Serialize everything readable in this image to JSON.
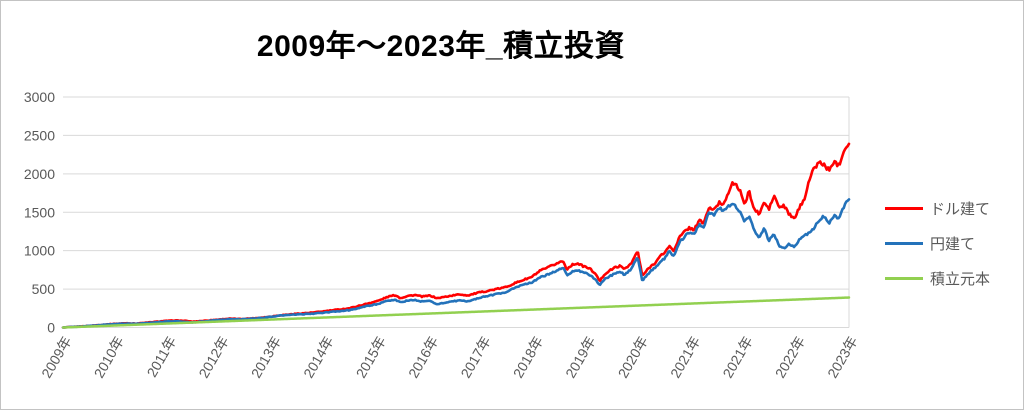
{
  "chart_data": {
    "type": "line",
    "title": "2009年～2023年_積立投資",
    "xlabel": "",
    "ylabel": "",
    "ylim": [
      0,
      3000
    ],
    "y_ticks": [
      0,
      500,
      1000,
      1500,
      2000,
      2500,
      3000
    ],
    "grid": true,
    "gridline_color": "#d9d9d9",
    "axis_text_color": "#595959",
    "legend_position": "right",
    "x_tick_labels": [
      "2009年",
      "2010年",
      "2011年",
      "2012年",
      "2013年",
      "2014年",
      "2015年",
      "2016年",
      "2017年",
      "2018年",
      "2019年",
      "2020年",
      "2021年",
      "2021年",
      "2022年",
      "2023年"
    ],
    "x_note": "t is the fraction of the horizontal axis from 2009 (0.0) to late 2023 (1.0); underlying data is daily",
    "series": [
      {
        "name": "ドル建て",
        "color": "#ff0000",
        "width": 2.6,
        "noisy": true,
        "points": [
          [
            0.0,
            0
          ],
          [
            0.023,
            14
          ],
          [
            0.042,
            28
          ],
          [
            0.061,
            45
          ],
          [
            0.08,
            56
          ],
          [
            0.093,
            51
          ],
          [
            0.112,
            68
          ],
          [
            0.128,
            84
          ],
          [
            0.143,
            92
          ],
          [
            0.156,
            86
          ],
          [
            0.165,
            75
          ],
          [
            0.175,
            84
          ],
          [
            0.194,
            100
          ],
          [
            0.211,
            115
          ],
          [
            0.226,
            110
          ],
          [
            0.245,
            122
          ],
          [
            0.261,
            138
          ],
          [
            0.277,
            160
          ],
          [
            0.296,
            178
          ],
          [
            0.315,
            192
          ],
          [
            0.327,
            205
          ],
          [
            0.346,
            228
          ],
          [
            0.365,
            252
          ],
          [
            0.384,
            302
          ],
          [
            0.401,
            348
          ],
          [
            0.414,
            402
          ],
          [
            0.423,
            422
          ],
          [
            0.429,
            382
          ],
          [
            0.439,
            412
          ],
          [
            0.448,
            422
          ],
          [
            0.457,
            402
          ],
          [
            0.467,
            416
          ],
          [
            0.476,
            380
          ],
          [
            0.49,
            407
          ],
          [
            0.505,
            432
          ],
          [
            0.515,
            417
          ],
          [
            0.528,
            452
          ],
          [
            0.543,
            482
          ],
          [
            0.562,
            522
          ],
          [
            0.581,
            602
          ],
          [
            0.596,
            655
          ],
          [
            0.607,
            737
          ],
          [
            0.617,
            780
          ],
          [
            0.626,
            824
          ],
          [
            0.636,
            867
          ],
          [
            0.641,
            759
          ],
          [
            0.647,
            811
          ],
          [
            0.654,
            837
          ],
          [
            0.661,
            802
          ],
          [
            0.67,
            767
          ],
          [
            0.676,
            715
          ],
          [
            0.683,
            606
          ],
          [
            0.689,
            694
          ],
          [
            0.695,
            737
          ],
          [
            0.702,
            780
          ],
          [
            0.708,
            800
          ],
          [
            0.714,
            765
          ],
          [
            0.723,
            830
          ],
          [
            0.731,
            1000
          ],
          [
            0.737,
            672
          ],
          [
            0.746,
            780
          ],
          [
            0.754,
            850
          ],
          [
            0.761,
            940
          ],
          [
            0.766,
            980
          ],
          [
            0.771,
            1060
          ],
          [
            0.777,
            1000
          ],
          [
            0.784,
            1170
          ],
          [
            0.792,
            1260
          ],
          [
            0.797,
            1300
          ],
          [
            0.802,
            1270
          ],
          [
            0.81,
            1390
          ],
          [
            0.815,
            1360
          ],
          [
            0.822,
            1560
          ],
          [
            0.829,
            1530
          ],
          [
            0.835,
            1630
          ],
          [
            0.84,
            1600
          ],
          [
            0.845,
            1720
          ],
          [
            0.851,
            1880
          ],
          [
            0.857,
            1840
          ],
          [
            0.862,
            1780
          ],
          [
            0.867,
            1585
          ],
          [
            0.873,
            1780
          ],
          [
            0.879,
            1540
          ],
          [
            0.886,
            1475
          ],
          [
            0.892,
            1630
          ],
          [
            0.898,
            1540
          ],
          [
            0.905,
            1715
          ],
          [
            0.911,
            1560
          ],
          [
            0.917,
            1585
          ],
          [
            0.924,
            1475
          ],
          [
            0.93,
            1410
          ],
          [
            0.936,
            1540
          ],
          [
            0.943,
            1670
          ],
          [
            0.949,
            1910
          ],
          [
            0.956,
            2080
          ],
          [
            0.962,
            2150
          ],
          [
            0.968,
            2120
          ],
          [
            0.975,
            2040
          ],
          [
            0.981,
            2170
          ],
          [
            0.987,
            2105
          ],
          [
            0.993,
            2300
          ],
          [
            1.0,
            2400
          ]
        ]
      },
      {
        "name": "円建て",
        "color": "#2372ba",
        "width": 2.6,
        "noisy": true,
        "points": [
          [
            0.0,
            0
          ],
          [
            0.023,
            14
          ],
          [
            0.042,
            27
          ],
          [
            0.061,
            43
          ],
          [
            0.08,
            52
          ],
          [
            0.093,
            48
          ],
          [
            0.112,
            63
          ],
          [
            0.128,
            76
          ],
          [
            0.143,
            82
          ],
          [
            0.156,
            74
          ],
          [
            0.165,
            66
          ],
          [
            0.175,
            75
          ],
          [
            0.194,
            95
          ],
          [
            0.211,
            108
          ],
          [
            0.226,
            105
          ],
          [
            0.245,
            118
          ],
          [
            0.261,
            134
          ],
          [
            0.277,
            156
          ],
          [
            0.296,
            168
          ],
          [
            0.315,
            178
          ],
          [
            0.327,
            188
          ],
          [
            0.346,
            207
          ],
          [
            0.365,
            227
          ],
          [
            0.384,
            272
          ],
          [
            0.401,
            308
          ],
          [
            0.414,
            348
          ],
          [
            0.423,
            362
          ],
          [
            0.429,
            327
          ],
          [
            0.439,
            352
          ],
          [
            0.448,
            357
          ],
          [
            0.457,
            337
          ],
          [
            0.467,
            347
          ],
          [
            0.476,
            302
          ],
          [
            0.49,
            332
          ],
          [
            0.505,
            352
          ],
          [
            0.515,
            340
          ],
          [
            0.528,
            382
          ],
          [
            0.543,
            417
          ],
          [
            0.562,
            457
          ],
          [
            0.581,
            542
          ],
          [
            0.596,
            585
          ],
          [
            0.607,
            650
          ],
          [
            0.617,
            692
          ],
          [
            0.626,
            730
          ],
          [
            0.636,
            780
          ],
          [
            0.641,
            680
          ],
          [
            0.647,
            725
          ],
          [
            0.654,
            750
          ],
          [
            0.661,
            720
          ],
          [
            0.67,
            685
          ],
          [
            0.676,
            640
          ],
          [
            0.683,
            550
          ],
          [
            0.689,
            625
          ],
          [
            0.695,
            668
          ],
          [
            0.702,
            700
          ],
          [
            0.708,
            727
          ],
          [
            0.714,
            690
          ],
          [
            0.723,
            755
          ],
          [
            0.731,
            930
          ],
          [
            0.737,
            607
          ],
          [
            0.746,
            715
          ],
          [
            0.754,
            790
          ],
          [
            0.761,
            860
          ],
          [
            0.766,
            905
          ],
          [
            0.771,
            1000
          ],
          [
            0.777,
            930
          ],
          [
            0.784,
            1106
          ],
          [
            0.792,
            1200
          ],
          [
            0.797,
            1240
          ],
          [
            0.802,
            1210
          ],
          [
            0.81,
            1345
          ],
          [
            0.815,
            1310
          ],
          [
            0.822,
            1500
          ],
          [
            0.829,
            1470
          ],
          [
            0.835,
            1560
          ],
          [
            0.84,
            1520
          ],
          [
            0.845,
            1560
          ],
          [
            0.851,
            1600
          ],
          [
            0.857,
            1570
          ],
          [
            0.862,
            1500
          ],
          [
            0.867,
            1390
          ],
          [
            0.873,
            1455
          ],
          [
            0.879,
            1260
          ],
          [
            0.886,
            1170
          ],
          [
            0.892,
            1300
          ],
          [
            0.898,
            1130
          ],
          [
            0.905,
            1215
          ],
          [
            0.911,
            1065
          ],
          [
            0.917,
            1025
          ],
          [
            0.924,
            1090
          ],
          [
            0.93,
            1040
          ],
          [
            0.936,
            1130
          ],
          [
            0.943,
            1190
          ],
          [
            0.949,
            1240
          ],
          [
            0.956,
            1300
          ],
          [
            0.962,
            1390
          ],
          [
            0.968,
            1455
          ],
          [
            0.975,
            1365
          ],
          [
            0.981,
            1455
          ],
          [
            0.987,
            1410
          ],
          [
            0.993,
            1560
          ],
          [
            1.0,
            1680
          ]
        ]
      },
      {
        "name": "積立元本",
        "color": "#92d050",
        "width": 2.5,
        "noisy": false,
        "points": [
          [
            0.0,
            0
          ],
          [
            1.0,
            390
          ]
        ]
      }
    ]
  },
  "legend": {
    "items": [
      {
        "label": "ドル建て",
        "color": "#ff0000"
      },
      {
        "label": "円建て",
        "color": "#2372ba"
      },
      {
        "label": "積立元本",
        "color": "#92d050"
      }
    ]
  }
}
